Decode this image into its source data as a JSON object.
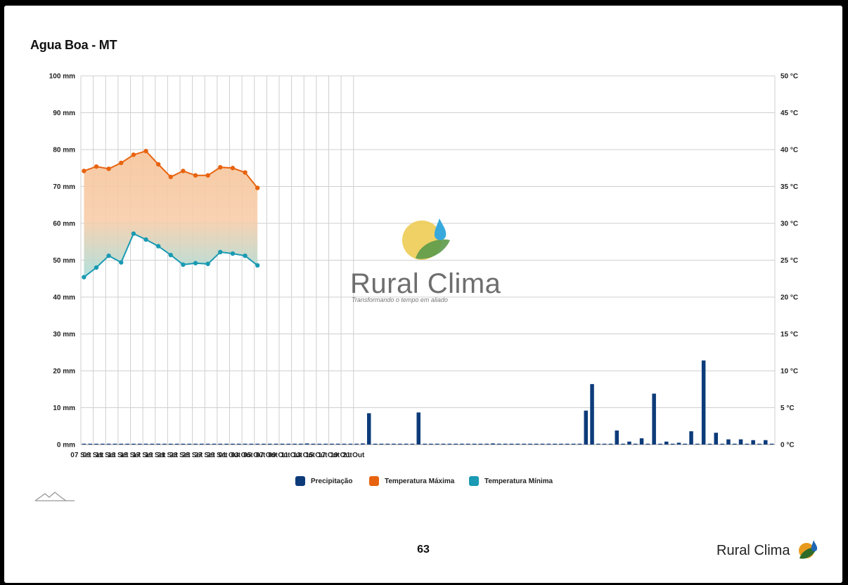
{
  "title": "Agua Boa - MT",
  "page_number": "63",
  "brand": {
    "name": "Rural Clima",
    "tagline": "Transformando o tempo em aliado",
    "footer_name": "Rural Clima"
  },
  "colors": {
    "precip": "#0d3b7a",
    "tmax": "#e8630f",
    "tmin": "#1a9ab3",
    "fill_top": "#f6c49a",
    "fill_bottom": "#a8ddd9",
    "grid": "#cfcfcf"
  },
  "legend": [
    {
      "label": "Precipitação",
      "color": "#0d3b7a"
    },
    {
      "label": "Temperatura Máxima",
      "color": "#e8630f"
    },
    {
      "label": "Temperatura Mínima",
      "color": "#1a9ab3"
    }
  ],
  "chart_data": {
    "type": "bar",
    "x_tick_labels": [
      "07 Set",
      "09 Set",
      "11 Set",
      "13 Set",
      "15 Set",
      "17 Set",
      "19 Set",
      "21 Set",
      "23 Set",
      "25 Set",
      "27 Set",
      "29 Set",
      "01 Out",
      "03 Out",
      "05 Out",
      "07 Out",
      "09 Out",
      "11 Out",
      "13 Out",
      "15 Out",
      "17 Out",
      "19 Out",
      "21 Out"
    ],
    "y_left": {
      "ticks": [
        "0 mm",
        "10 mm",
        "20 mm",
        "30 mm",
        "40 mm",
        "50 mm",
        "60 mm",
        "70 mm",
        "80 mm",
        "90 mm",
        "100 mm"
      ],
      "ylim": [
        0,
        100
      ]
    },
    "y_right": {
      "ticks": [
        "0 °C",
        "5 °C",
        "10 °C",
        "15 °C",
        "20 °C",
        "25 °C",
        "30 °C",
        "35 °C",
        "40 °C",
        "45 °C",
        "50 °C"
      ],
      "ylim": [
        0,
        50
      ]
    },
    "grid": true,
    "legend_position": "bottom",
    "series": [
      {
        "name": "Precipitação",
        "type": "bar",
        "axis": "left",
        "values": [
          0,
          0,
          0,
          0,
          0,
          0,
          0,
          0,
          0,
          0,
          0.1,
          0.2,
          0,
          0,
          0,
          0,
          0,
          0,
          0.1,
          0,
          0.1,
          0,
          0,
          0,
          0,
          0,
          0,
          0,
          0,
          0,
          0,
          0,
          0,
          0,
          0,
          0,
          0.3,
          0,
          0,
          0,
          0,
          0,
          0,
          0,
          0,
          0.3,
          8.5,
          0,
          0,
          0,
          0,
          0,
          0,
          0,
          8.7,
          0,
          0,
          0,
          0,
          0,
          0.2,
          0,
          0,
          0,
          0,
          0,
          0.3,
          0,
          0,
          0,
          0,
          0,
          0.2,
          0,
          0,
          0,
          0,
          0,
          0.2,
          0,
          0,
          9.2,
          16.4,
          0,
          0.1,
          0,
          3.8,
          0,
          0.8,
          0,
          1.7,
          0,
          13.8,
          0,
          0.8,
          0,
          0.5,
          0,
          3.6,
          0,
          22.8,
          0,
          3.2,
          0,
          1.4,
          0,
          1.4,
          0,
          1.2,
          0,
          1.2,
          0
        ]
      },
      {
        "name": "Temperatura Máxima",
        "type": "line",
        "axis": "right",
        "values": [
          37.1,
          37.7,
          37.4,
          38.2,
          39.3,
          39.8,
          38,
          36.3,
          37.1,
          36.5,
          36.5,
          37.6,
          37.5,
          36.9,
          34.8
        ]
      },
      {
        "name": "Temperatura Mínima",
        "type": "line",
        "axis": "right",
        "values": [
          22.7,
          24,
          25.6,
          24.7,
          28.6,
          27.8,
          26.9,
          25.7,
          24.4,
          24.6,
          24.5,
          26.1,
          25.9,
          25.6,
          24.3
        ]
      }
    ]
  }
}
